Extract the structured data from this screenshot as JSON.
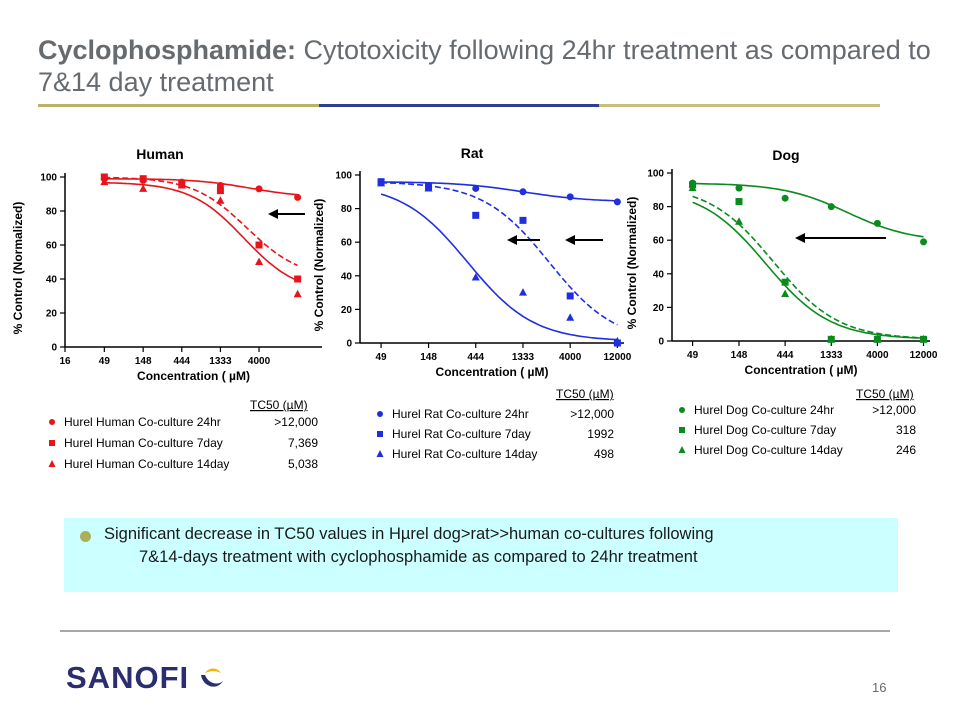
{
  "header": {
    "title_bold": "Cyclophosphamide:",
    "title_rest": " Cytotoxicity following 24hr treatment as compared to 7&14 day treatment",
    "rule_colors": [
      "#b8b26b",
      "#2e3f8f",
      "#c8c07a"
    ]
  },
  "chart_data": [
    {
      "type": "scatter",
      "title": "Human",
      "xlabel": "Concentration ( µM)",
      "ylabel": "% Control (Normalized)",
      "x_scale": "log",
      "x_ticks": [
        "16",
        "49",
        "148",
        "444",
        "1333",
        "4000"
      ],
      "y_ticks": [
        "0",
        "20",
        "40",
        "60",
        "80",
        "100"
      ],
      "ylim": [
        0,
        100
      ],
      "color": "#e8141c",
      "legend_header": "TC50 (µM)",
      "series": [
        {
          "name": "Hurel Human Co-culture 24hr",
          "tc50": ">12,000",
          "marker": "circle",
          "line": "solid",
          "x": [
            49,
            148,
            444,
            1333,
            4000,
            12000
          ],
          "y": [
            99,
            98,
            97,
            95,
            93,
            88
          ]
        },
        {
          "name": "Hurel Human Co-culture 7day",
          "tc50": "7,369",
          "marker": "square",
          "line": "dashed",
          "x": [
            49,
            148,
            444,
            1333,
            4000,
            12000
          ],
          "y": [
            100,
            99,
            96,
            92,
            60,
            40
          ]
        },
        {
          "name": "Hurel Human Co-culture 14day",
          "tc50": "5,038",
          "marker": "triangle",
          "line": "solid",
          "x": [
            49,
            148,
            444,
            1333,
            4000,
            12000
          ],
          "y": [
            97,
            93,
            95,
            86,
            50,
            31
          ]
        }
      ]
    },
    {
      "type": "scatter",
      "title": "Rat",
      "xlabel": "Concentration ( µM)",
      "ylabel": "% Control (Normalized)",
      "x_scale": "log",
      "x_ticks": [
        "49",
        "148",
        "444",
        "1333",
        "4000",
        "12000"
      ],
      "y_ticks": [
        "0",
        "20",
        "40",
        "60",
        "80",
        "100"
      ],
      "ylim": [
        0,
        100
      ],
      "color": "#1f2fe0",
      "legend_header": "TC50 (µM)",
      "series": [
        {
          "name": "Hurel Rat Co-culture 24hr",
          "tc50": ">12,000",
          "marker": "circle",
          "line": "solid",
          "x": [
            49,
            148,
            444,
            1333,
            4000,
            12000
          ],
          "y": [
            96,
            93,
            92,
            90,
            87,
            84
          ]
        },
        {
          "name": "Hurel Rat Co-culture 7day",
          "tc50": "1992",
          "marker": "square",
          "line": "dashed",
          "x": [
            49,
            148,
            444,
            1333,
            4000,
            12000
          ],
          "y": [
            96,
            93,
            76,
            73,
            28,
            0
          ]
        },
        {
          "name": "Hurel Rat Co-culture 14day",
          "tc50": "498",
          "marker": "triangle",
          "line": "solid",
          "x": [
            49,
            148,
            444,
            1333,
            4000,
            12000
          ],
          "y": [
            95,
            92,
            39,
            30,
            15,
            1
          ]
        }
      ]
    },
    {
      "type": "scatter",
      "title": "Dog",
      "xlabel": "Concentration ( µM)",
      "ylabel": "% Control (Normalized)",
      "x_scale": "log",
      "x_ticks": [
        "49",
        "148",
        "444",
        "1333",
        "4000",
        "12000"
      ],
      "y_ticks": [
        "0",
        "20",
        "40",
        "60",
        "80",
        "100"
      ],
      "ylim": [
        0,
        100
      ],
      "color": "#0b8a1e",
      "legend_header": "TC50 (µM)",
      "series": [
        {
          "name": "Hurel Dog Co-culture 24hr",
          "tc50": ">12,000",
          "marker": "circle",
          "line": "solid",
          "x": [
            49,
            148,
            444,
            1333,
            4000,
            12000
          ],
          "y": [
            94,
            91,
            85,
            80,
            70,
            59
          ]
        },
        {
          "name": "Hurel Dog Co-culture 7day",
          "tc50": "318",
          "marker": "square",
          "line": "dashed",
          "x": [
            49,
            148,
            444,
            1333,
            4000,
            12000
          ],
          "y": [
            93,
            83,
            35,
            1,
            1,
            1
          ]
        },
        {
          "name": "Hurel Dog Co-culture 14day",
          "tc50": "246",
          "marker": "triangle",
          "line": "solid",
          "x": [
            49,
            148,
            444,
            1333,
            4000,
            12000
          ],
          "y": [
            91,
            71,
            28,
            1,
            1,
            1
          ]
        }
      ]
    }
  ],
  "callout": {
    "line1": "Significant decrease in TC50 values in Hµrel dog>rat>>human co-cultures following",
    "line2": "7&14-days treatment with cyclophosphamide as compared to 24hr treatment",
    "background": "#ccffff",
    "bullet_color": "#aab05a"
  },
  "footer": {
    "logo_text": "SANOFI",
    "page_number": "16",
    "rule_color": "#a7a8aa"
  }
}
